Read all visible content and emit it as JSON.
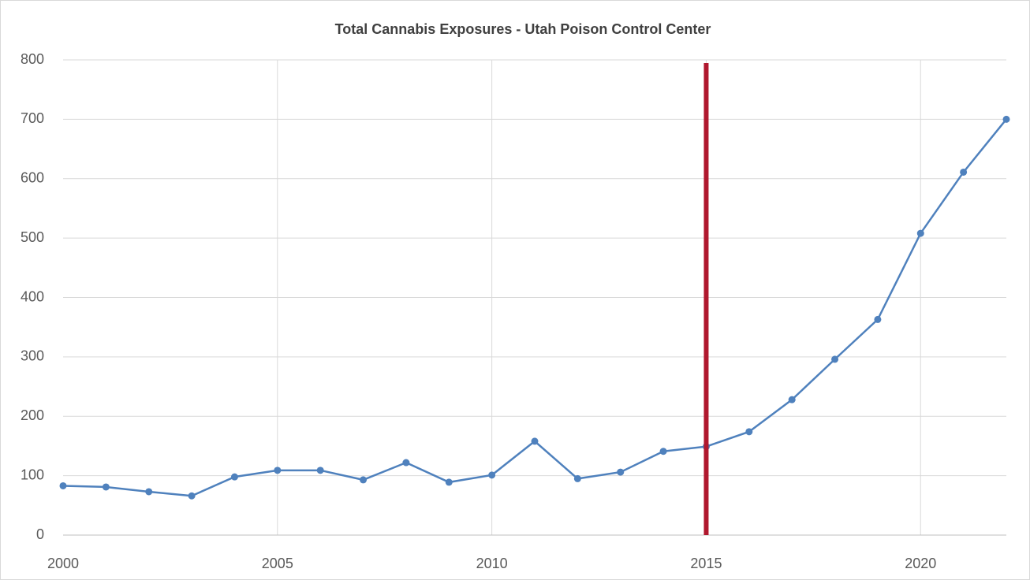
{
  "chart_data": {
    "type": "line",
    "title": "Total Cannabis Exposures - Utah Poison Control Center",
    "x": [
      2000,
      2001,
      2002,
      2003,
      2004,
      2005,
      2006,
      2007,
      2008,
      2009,
      2010,
      2011,
      2012,
      2013,
      2014,
      2015,
      2016,
      2017,
      2018,
      2019,
      2020,
      2021,
      2022
    ],
    "series": [
      {
        "name": "Total Cannabis Exposures",
        "color": "#4f81bd",
        "values": [
          83,
          81,
          73,
          66,
          98,
          109,
          109,
          93,
          122,
          89,
          101,
          158,
          95,
          106,
          141,
          149,
          174,
          228,
          296,
          363,
          508,
          611,
          700
        ]
      }
    ],
    "xlim": [
      2000,
      2022
    ],
    "xticks": [
      2000,
      2005,
      2010,
      2015,
      2020
    ],
    "ylim": [
      0,
      800
    ],
    "yticks": [
      0,
      100,
      200,
      300,
      400,
      500,
      600,
      700,
      800
    ],
    "grid": true,
    "legend": false,
    "reference_line": {
      "x": 2015,
      "color": "#b0182e"
    }
  }
}
